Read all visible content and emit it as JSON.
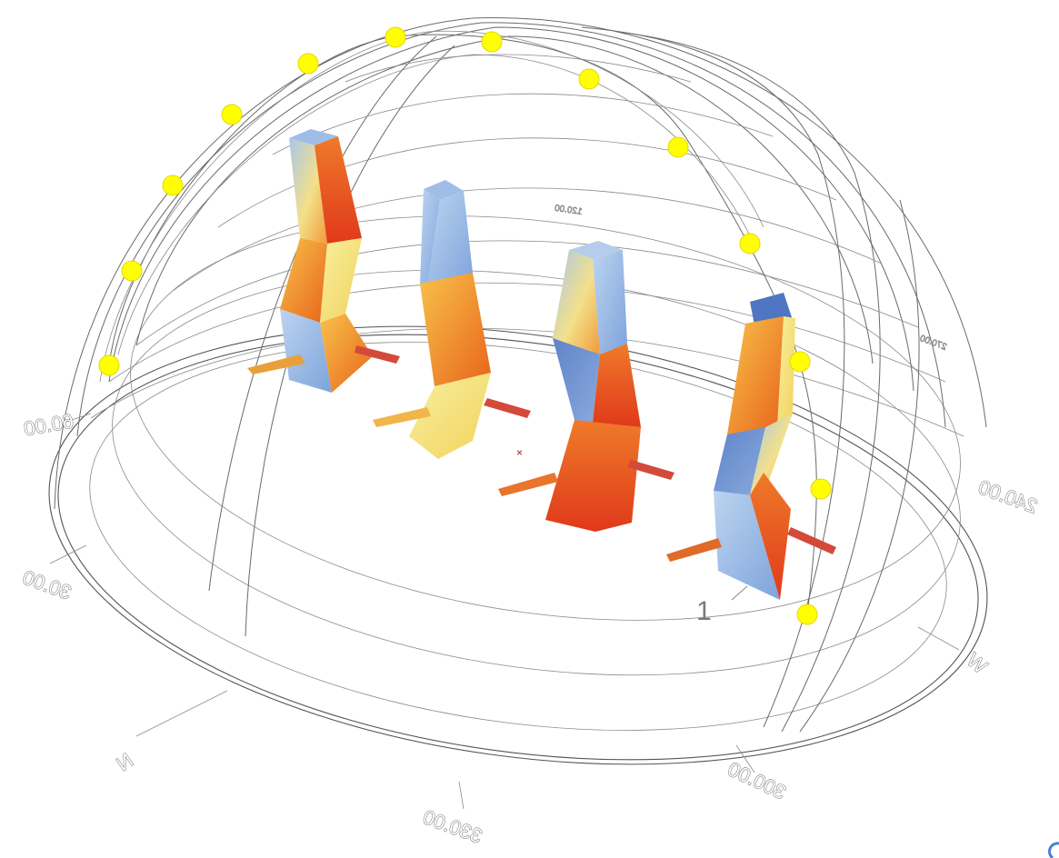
{
  "compass": {
    "n": "N",
    "w": "W",
    "a30": "30.00",
    "a60": "60.00",
    "a300": "300.00",
    "a330": "330.00",
    "a240": "240.00",
    "a120": "120.00",
    "a270": "270.00"
  },
  "building_index": "1",
  "colors": {
    "cool": "#a9c6ea",
    "mid": "#f6d76b",
    "warm": "#f0882a",
    "hot": "#e24a19",
    "sun": "#ffff00"
  }
}
